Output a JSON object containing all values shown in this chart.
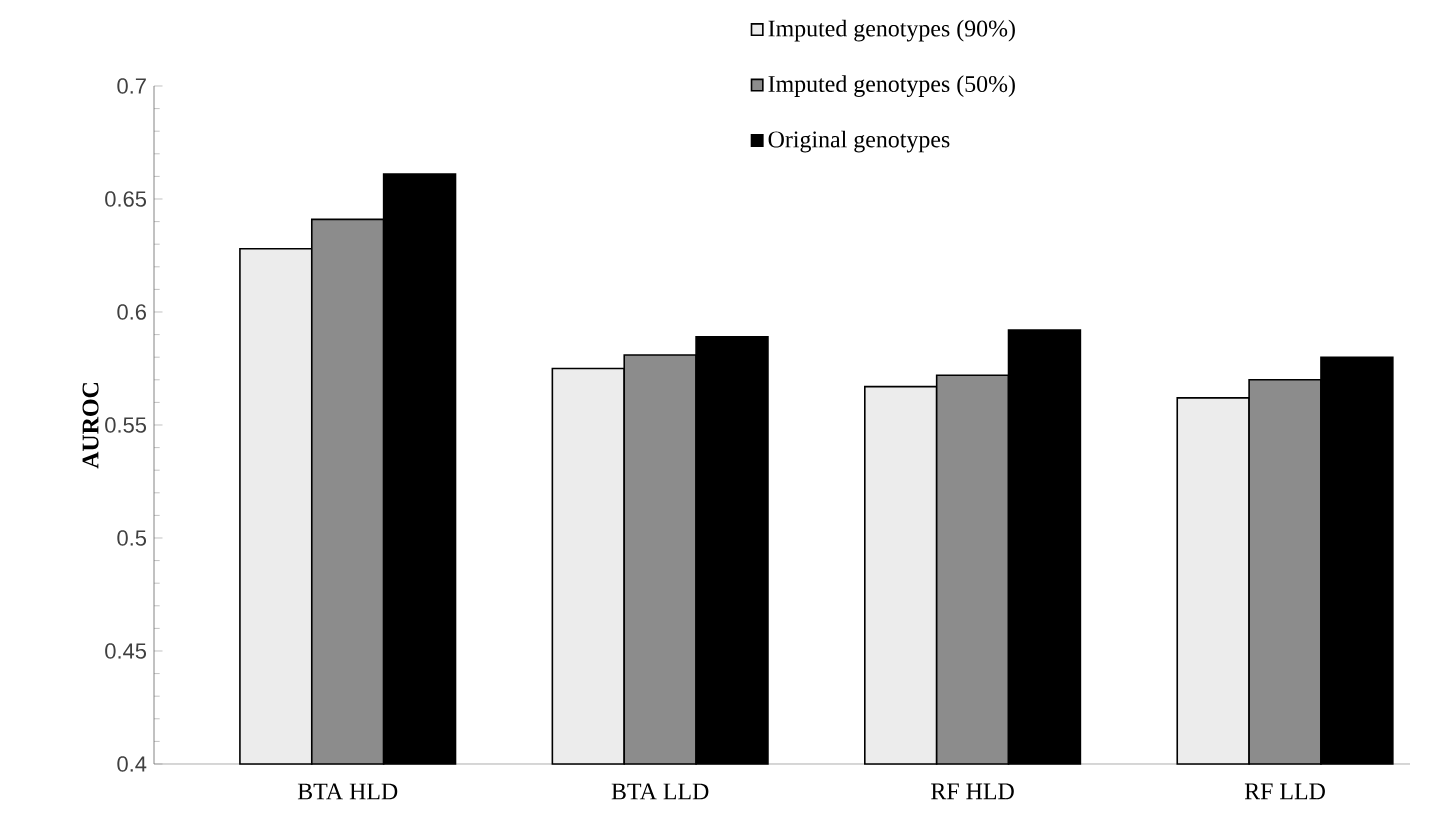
{
  "chart_data": {
    "type": "bar",
    "ylabel": "AUROC",
    "categories": [
      "BTA HLD",
      "BTA LLD",
      "RF HLD",
      "RF LLD"
    ],
    "series": [
      {
        "name": "Imputed genotypes (90%)",
        "color": "#ececec",
        "values": [
          0.628,
          0.575,
          0.567,
          0.562
        ]
      },
      {
        "name": "Imputed genotypes (50%)",
        "color": "#8c8c8c",
        "values": [
          0.641,
          0.581,
          0.572,
          0.57
        ]
      },
      {
        "name": "Original genotypes",
        "color": "#000000",
        "values": [
          0.661,
          0.589,
          0.592,
          0.58
        ]
      }
    ],
    "ylim": [
      0.4,
      0.7
    ],
    "yticks": [
      0.4,
      0.45,
      0.5,
      0.55,
      0.6,
      0.65,
      0.7
    ],
    "grid": false,
    "legend": "top right"
  }
}
